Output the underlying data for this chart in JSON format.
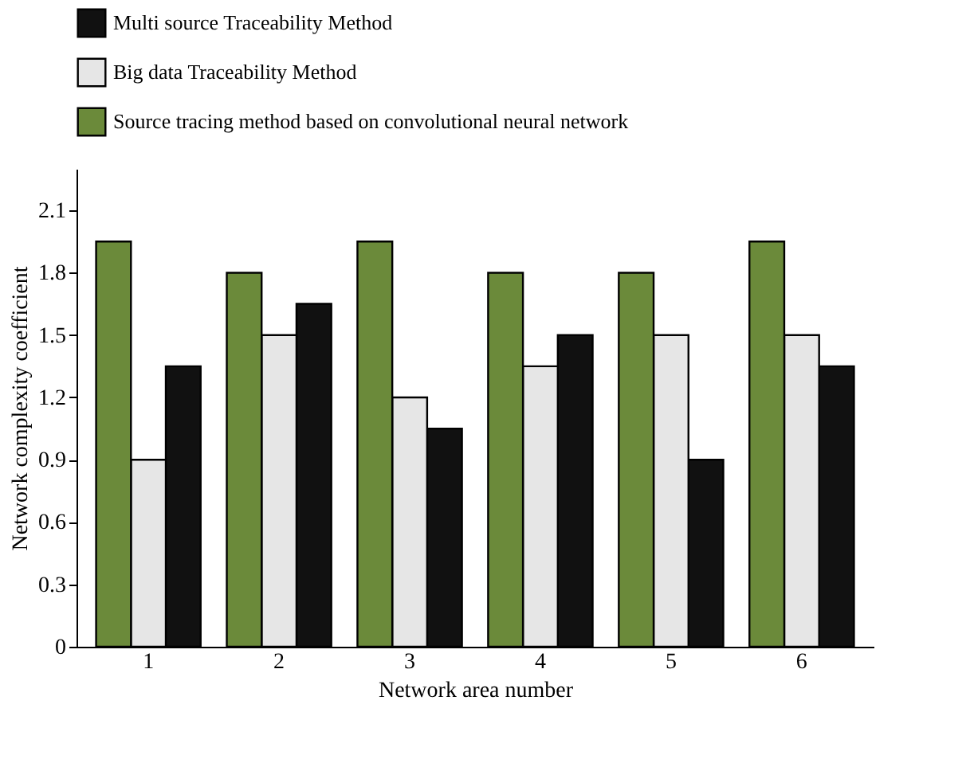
{
  "chart_data": {
    "type": "bar",
    "xlabel": "Network area number",
    "ylabel": "Network complexity coefficient",
    "categories": [
      "1",
      "2",
      "3",
      "4",
      "5",
      "6"
    ],
    "series": [
      {
        "name": "Multi source Traceability Method",
        "color": "#111111",
        "values": [
          1.35,
          1.65,
          1.05,
          1.5,
          0.9,
          1.35
        ]
      },
      {
        "name": "Big data Traceability Method",
        "color": "#e6e6e6",
        "values": [
          0.9,
          1.5,
          1.2,
          1.35,
          1.5,
          1.5
        ]
      },
      {
        "name": "Source tracing method based on convolutional neural network",
        "color": "#6b8a3a",
        "values": [
          1.95,
          1.8,
          1.95,
          1.8,
          1.8,
          1.95
        ]
      }
    ],
    "ylim": [
      0,
      2.3
    ],
    "yticks": [
      0,
      0.3,
      0.6,
      0.9,
      1.2,
      1.5,
      1.8,
      2.1
    ],
    "grid": false,
    "legend": "top"
  }
}
